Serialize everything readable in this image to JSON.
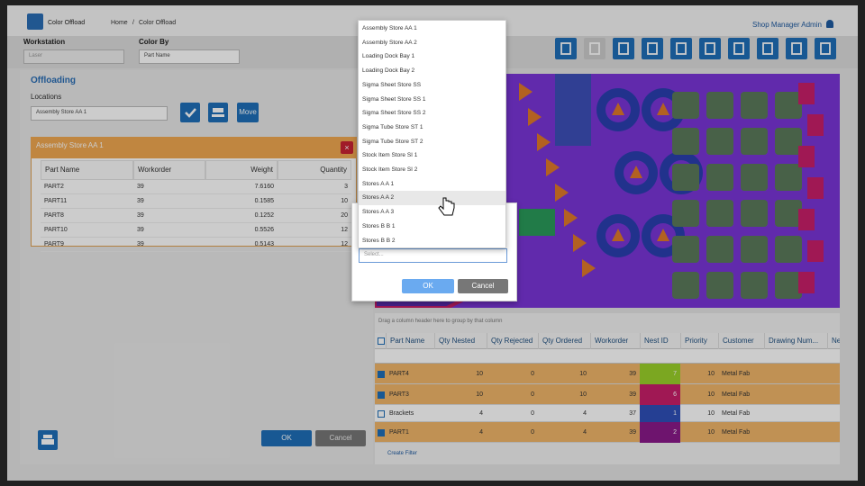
{
  "header": {
    "app_name": "Color Offload",
    "breadcrumb": [
      "Home",
      "/",
      "Color Offload"
    ],
    "user": "Shop Manager Admin"
  },
  "filters": {
    "workstation_label": "Workstation",
    "workstation_value": "Laser",
    "color_by_label": "Color By",
    "color_by_value": "Part Name"
  },
  "offloading": {
    "title": "Offloading",
    "locations_label": "Locations",
    "location_value": "Assembly Store AA 1",
    "move_button": "Move"
  },
  "location_panel": {
    "title": "Assembly Store AA 1",
    "columns": [
      "Part Name",
      "Workorder",
      "Weight",
      "Quantity"
    ],
    "rows": [
      [
        "PART2",
        "39",
        "7.6160",
        "3"
      ],
      [
        "PART11",
        "39",
        "0.1585",
        "10"
      ],
      [
        "PART8",
        "39",
        "0.1252",
        "20"
      ],
      [
        "PART10",
        "39",
        "0.5526",
        "12"
      ],
      [
        "PART9",
        "39",
        "0.5143",
        "12"
      ]
    ]
  },
  "footer_buttons": {
    "ok": "OK",
    "cancel": "Cancel"
  },
  "dropdown": {
    "items": [
      "Assembly Store AA 1",
      "Assembly Store AA 2",
      "Loading Dock Bay 1",
      "Loading Dock Bay 2",
      "Sigma Sheet Store SS",
      "Sigma Sheet Store SS 1",
      "Sigma Sheet Store SS 2",
      "Sigma Tube Store ST 1",
      "Sigma Tube Store ST 2",
      "Stock Item Store SI 1",
      "Stock Item Store SI 2",
      "Stores A A 1",
      "Stores A A 2",
      "Stores A A 3",
      "Stores B B 1",
      "Stores B B 2"
    ],
    "hovered": 12
  },
  "dialog": {
    "placeholder": "Select...",
    "ok": "OK",
    "cancel": "Cancel"
  },
  "grid": {
    "group_hint": "Drag a column header here to group by that column",
    "columns": [
      "Part Name",
      "Qty Nested",
      "Qty Rejected",
      "Qty Ordered",
      "Workorder",
      "Nest ID",
      "Priority",
      "Customer",
      "Drawing Num...",
      "Ne"
    ],
    "rows": [
      {
        "checked": true,
        "highlight": true,
        "nest_color": "#9ad12a",
        "cells": [
          "PART4",
          10,
          0,
          10,
          39,
          7,
          10,
          "Metal Fab"
        ]
      },
      {
        "checked": true,
        "highlight": true,
        "nest_color": "#c81f6a",
        "cells": [
          "PART3",
          10,
          0,
          10,
          39,
          6,
          10,
          "Metal Fab"
        ]
      },
      {
        "checked": false,
        "highlight": false,
        "nest_color": "#2f4fb8",
        "cells": [
          "Brackets",
          4,
          0,
          4,
          37,
          1,
          10,
          "Metal Fab"
        ]
      },
      {
        "checked": true,
        "highlight": true,
        "nest_color": "#8a1a8a",
        "cells": [
          "PART1",
          4,
          0,
          4,
          39,
          2,
          10,
          "Metal Fab"
        ]
      }
    ],
    "footer": "Create Filter"
  }
}
